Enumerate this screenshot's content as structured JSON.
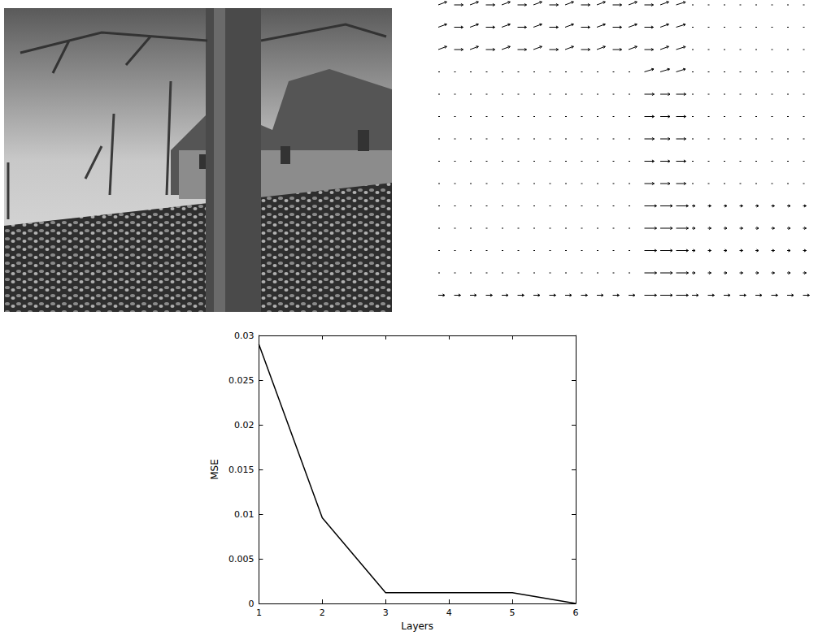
{
  "chart_data": {
    "type": "line",
    "x": [
      1,
      2,
      3,
      4,
      5,
      6
    ],
    "series": [
      {
        "name": "MSE",
        "color": "#000000",
        "values": [
          0.029,
          0.0096,
          0.0012,
          0.0012,
          0.0012,
          0.0
        ]
      }
    ],
    "x_label": "Layers",
    "y_label": "MSE",
    "xlim": [
      1,
      6
    ],
    "xticks": [
      1,
      2,
      3,
      4,
      5,
      6
    ],
    "ylim": [
      0,
      0.03
    ],
    "yticks": [
      0,
      0.005,
      0.01,
      0.015,
      0.02,
      0.025,
      0.03
    ],
    "grid": false
  }
}
